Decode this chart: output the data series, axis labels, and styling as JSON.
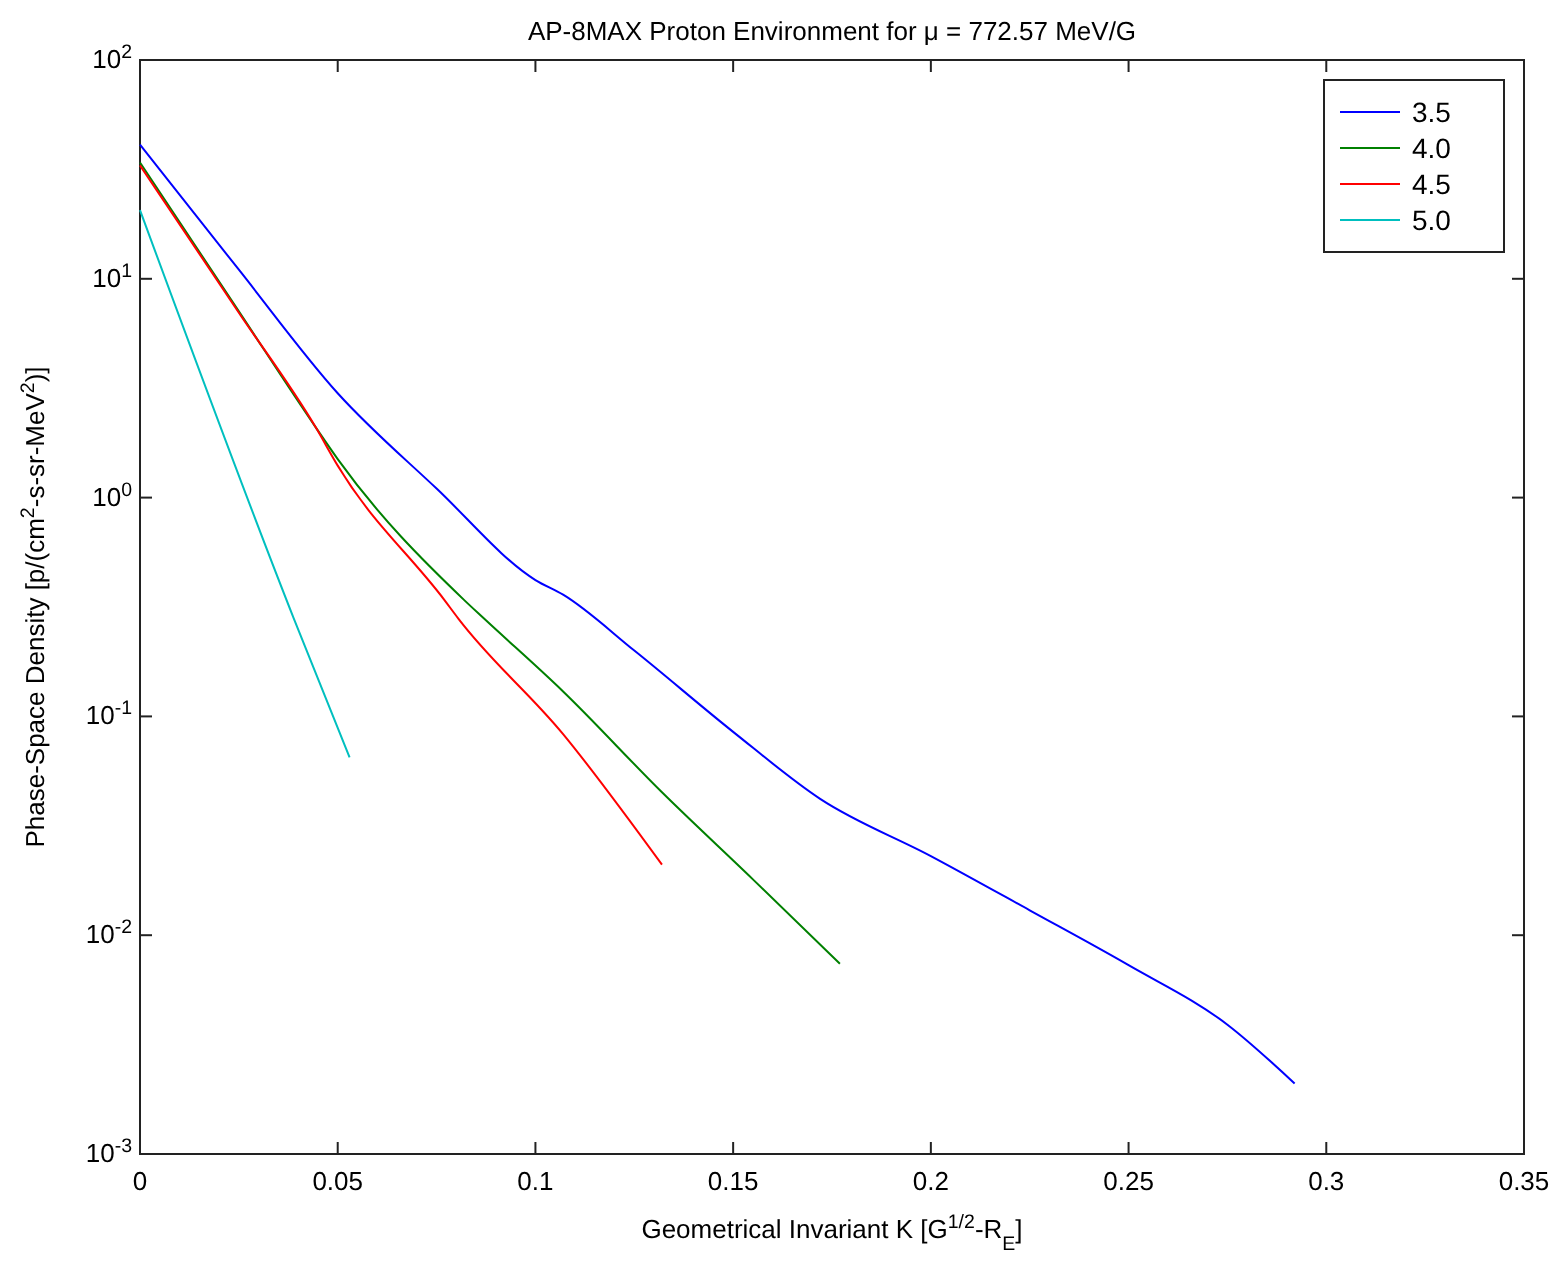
{
  "chart_data": {
    "type": "line",
    "title": "AP-8MAX Proton Environment for μ = 772.57 MeV/G",
    "xlabel": "Geometrical Invariant K [G$^{1/2}$-R$_{E}$]",
    "ylabel": "Phase-Space Density [p/(cm$^{2}$-s-sr-MeV$^{2}$)]",
    "log": "y",
    "xlim": [
      0,
      0.35
    ],
    "xticks": [
      0,
      0.05,
      0.1,
      0.15,
      0.2,
      0.25,
      0.3,
      0.35
    ],
    "ylim": [
      0.001,
      100
    ],
    "yticks": [
      {
        "value": 0.001,
        "label": "10$^{-3}$"
      },
      {
        "value": 0.01,
        "label": "10$^{-2}$"
      },
      {
        "value": 0.1,
        "label": "10$^{-1}$"
      },
      {
        "value": 1,
        "label": "10$^{0}$"
      },
      {
        "value": 10,
        "label": "10$^{1}$"
      },
      {
        "value": 100,
        "label": "10$^{2}$"
      }
    ],
    "legend": "top right",
    "grid": false,
    "marker": "none",
    "line_style": "solid",
    "series": [
      {
        "name": "3.5",
        "color": "#0000ff",
        "x": [
          0,
          0.025,
          0.05,
          0.075,
          0.1,
          0.107,
          0.125,
          0.15,
          0.172,
          0.2,
          0.225,
          0.25,
          0.275,
          0.292
        ],
        "values": [
          41,
          11,
          3.0,
          1.1,
          0.42,
          0.36,
          0.2,
          0.085,
          0.042,
          0.023,
          0.013,
          0.0073,
          0.0039,
          0.0021
        ]
      },
      {
        "name": "4.0",
        "color": "#008000",
        "x": [
          0,
          0.025,
          0.0444,
          0.05,
          0.082,
          0.087,
          0.107,
          0.132,
          0.155,
          0.177
        ],
        "values": [
          34,
          7.1,
          2.1,
          1.5,
          0.34,
          0.28,
          0.13,
          0.045,
          0.018,
          0.0074
        ]
      },
      {
        "name": "4.5",
        "color": "#ff0000",
        "x": [
          0,
          0.025,
          0.0444,
          0.05,
          0.077,
          0.0805,
          0.107,
          0.132
        ],
        "values": [
          33,
          7.0,
          2.1,
          1.4,
          0.34,
          0.28,
          0.083,
          0.021
        ]
      },
      {
        "name": "5.0",
        "color": "#00bfbf",
        "x": [
          0,
          0.0389,
          0.053
        ],
        "values": [
          20.6,
          0.28,
          0.065
        ]
      }
    ]
  }
}
